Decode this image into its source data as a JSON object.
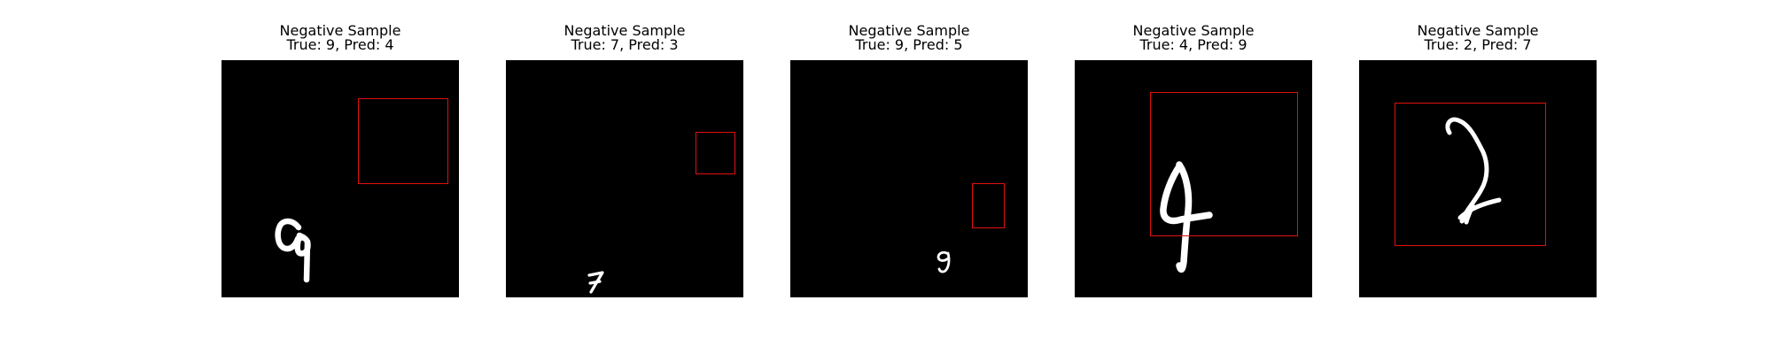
{
  "figure": {
    "panels": [
      {
        "title": "Negative Sample",
        "subtitle": "True: 9, Pred: 4",
        "true_label": 9,
        "pred_label": 4
      },
      {
        "title": "Negative Sample",
        "subtitle": "True: 7, Pred: 3",
        "true_label": 7,
        "pred_label": 3
      },
      {
        "title": "Negative Sample",
        "subtitle": "True: 9, Pred: 5",
        "true_label": 9,
        "pred_label": 5
      },
      {
        "title": "Negative Sample",
        "subtitle": "True: 4, Pred: 9",
        "true_label": 4,
        "pred_label": 9
      },
      {
        "title": "Negative Sample",
        "subtitle": "True: 2, Pred: 7",
        "true_label": 2,
        "pred_label": 7
      }
    ],
    "colors": {
      "background": "#000000",
      "digit": "#ffffff",
      "bbox": "#e0100f"
    }
  }
}
